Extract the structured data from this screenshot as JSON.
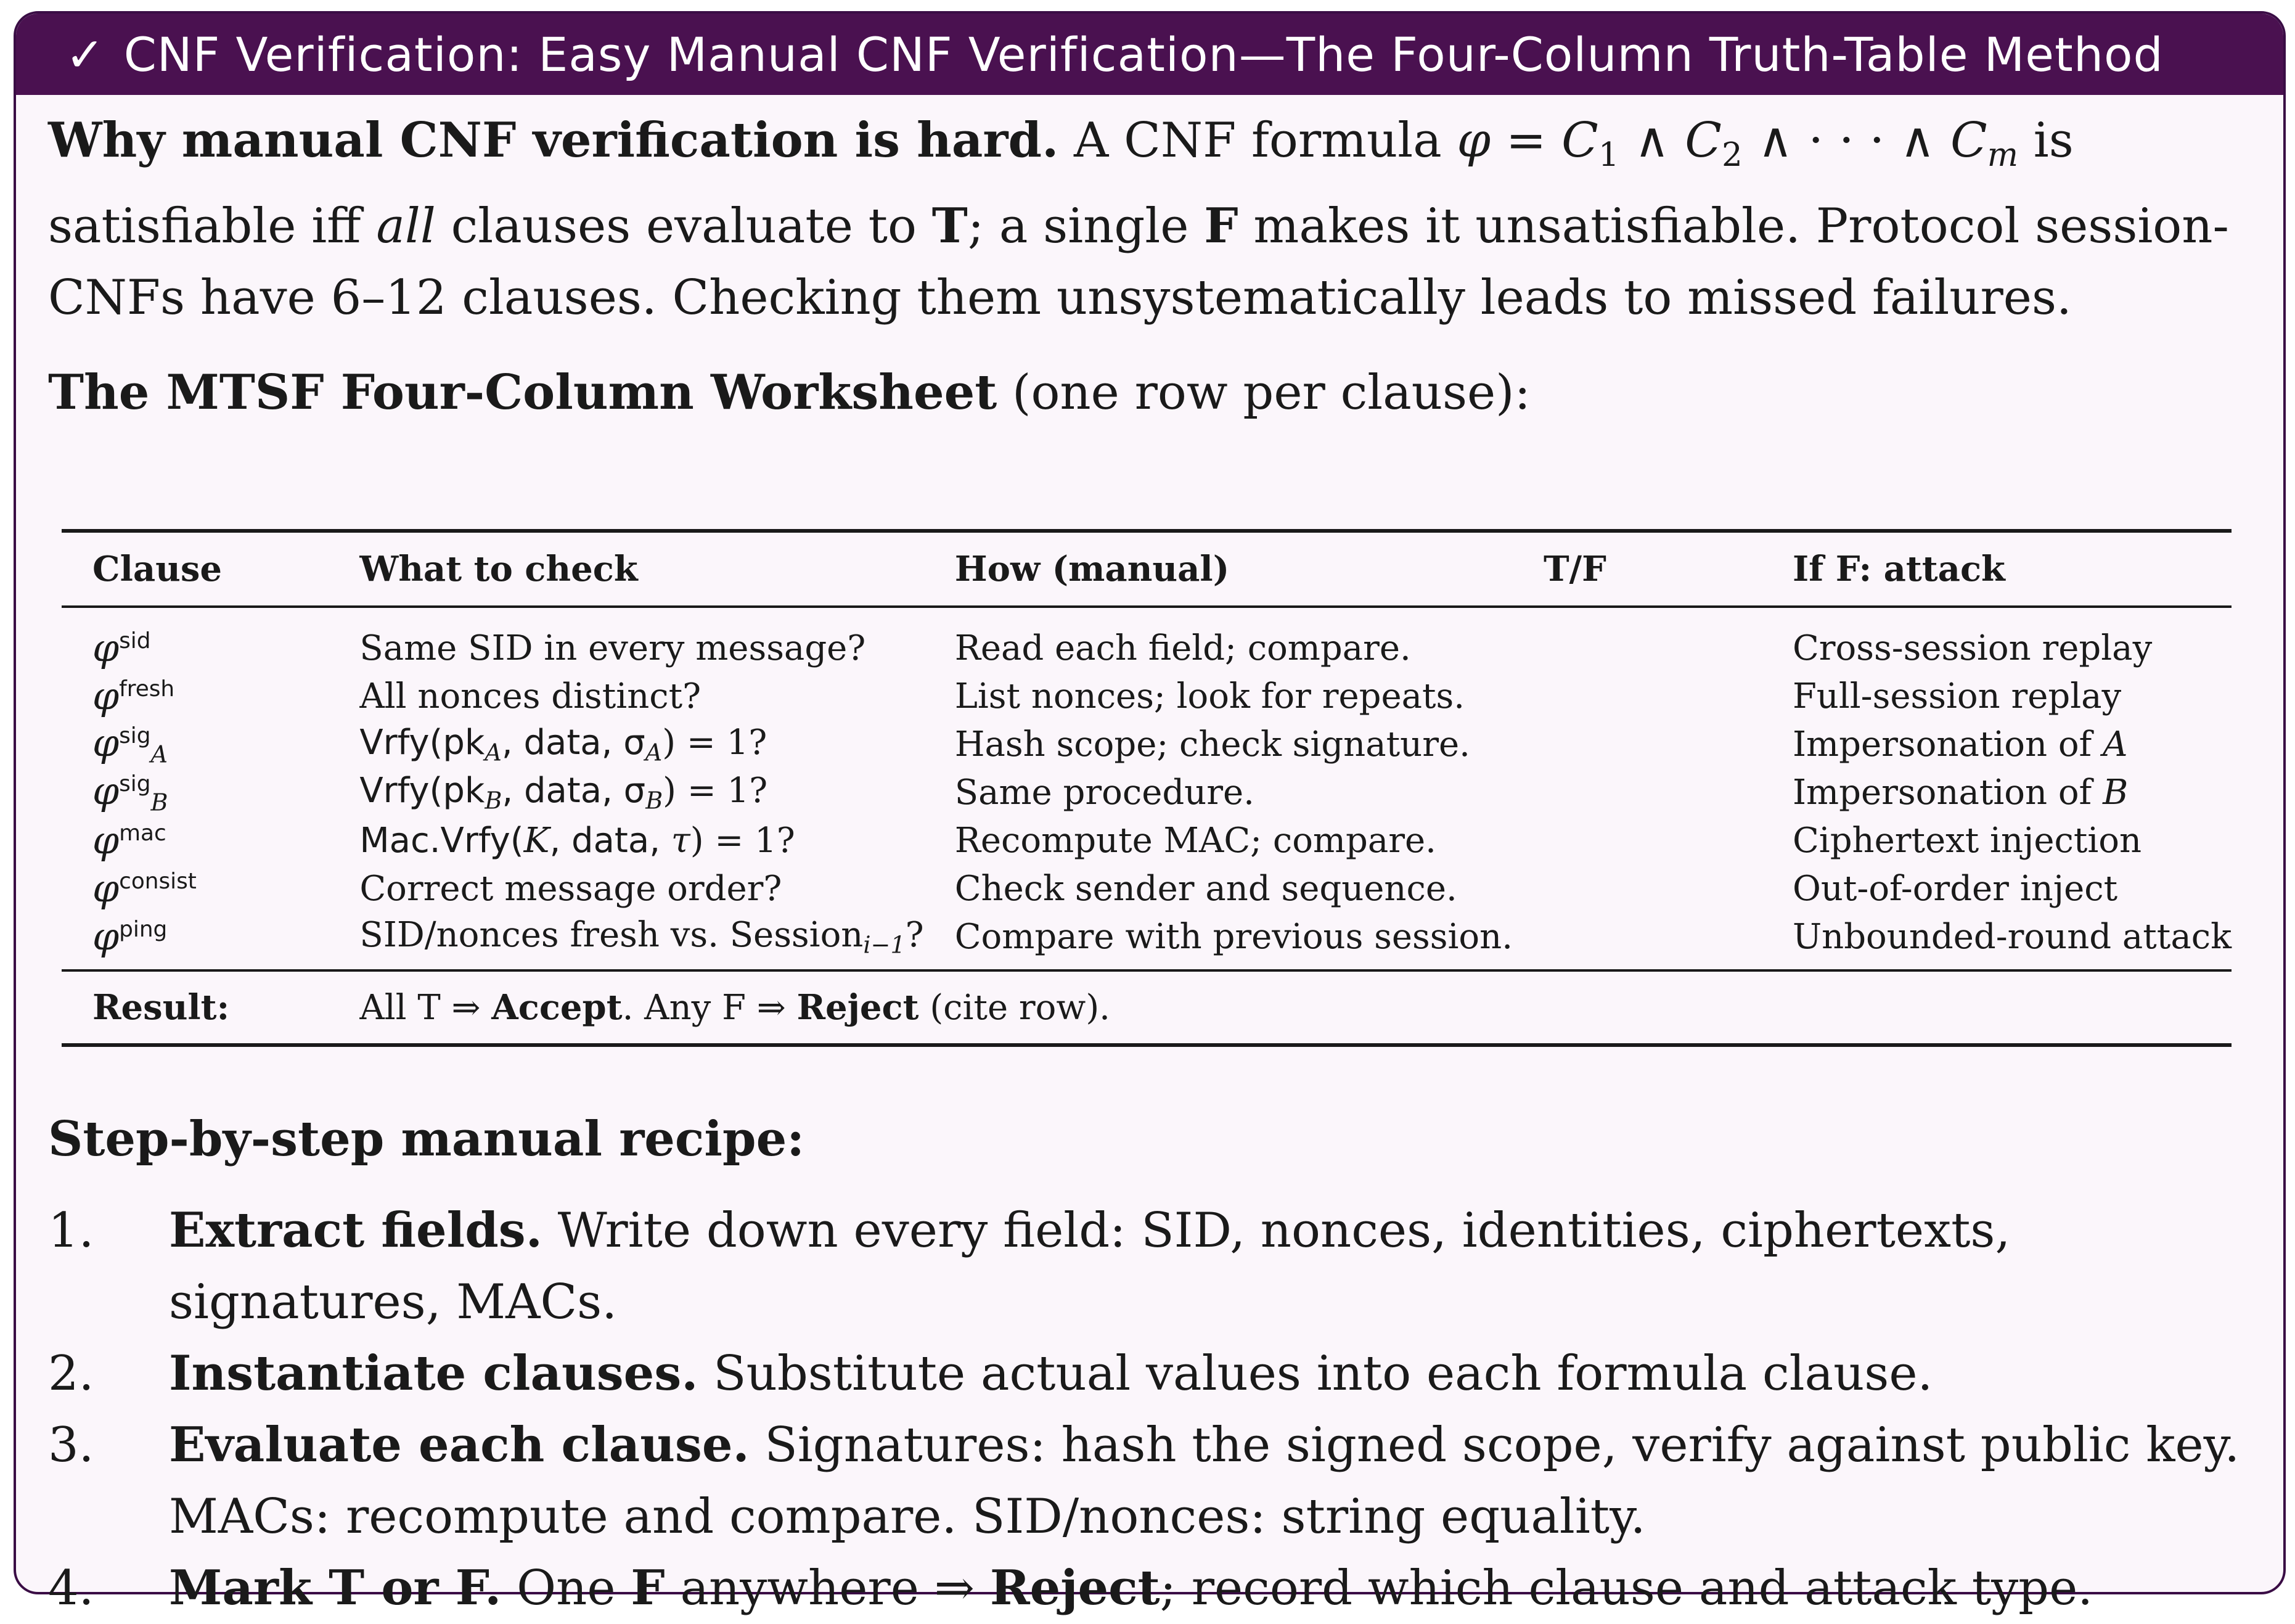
{
  "header": {
    "check_glyph": "✓",
    "title": "CNF Verification: Easy Manual CNF Verification—The Four-Column Truth-Table Method"
  },
  "intro": {
    "lead": "Why manual CNF verification is hard.",
    "text_a": "A CNF formula",
    "formula_phi": "φ",
    "formula_eq": " = ",
    "c": "C",
    "c1_sub": "1",
    "and": " ∧ ",
    "c2_sub": "2",
    "dots": " ∧ · · · ∧ ",
    "cm_sub": "m",
    "text_b": " is satisfiable iff ",
    "all": "all",
    "text_c": " clauses evaluate to ",
    "t": "T",
    "text_d": "; a single ",
    "f": "F",
    "text_e": " makes it unsatisfiable. Protocol session-CNFs have 6–12 clauses. Checking them unsystematically leads to missed failures."
  },
  "worksheet": {
    "heading": "The MTSF Four-Column Worksheet",
    "heading_note": " (one row per clause):"
  },
  "table": {
    "columns": [
      "Clause",
      "What to check",
      "How (manual)",
      "T/F",
      "If F: attack"
    ],
    "rows": [
      {
        "phi": "φ",
        "sup": "sid",
        "sub": "",
        "what": "Same SID in every message?",
        "how": "Read each field; compare.",
        "tf": "",
        "attack": "Cross-session replay"
      },
      {
        "phi": "φ",
        "sup": "fresh",
        "sub": "",
        "what": "All nonces distinct?",
        "how": "List nonces; look for repeats.",
        "tf": "",
        "attack": "Full-session replay"
      },
      {
        "phi": "φ",
        "sup": "sig",
        "sub": "A",
        "what_pre": "Vrfy(pk",
        "what_sub1": "A",
        "what_mid": ", data, σ",
        "what_sub2": "A",
        "what_post": ") = 1?",
        "how": "Hash scope; check signature.",
        "tf": "",
        "attack_pre": "Impersonation of ",
        "attack_var": "A"
      },
      {
        "phi": "φ",
        "sup": "sig",
        "sub": "B",
        "what_pre": "Vrfy(pk",
        "what_sub1": "B",
        "what_mid": ", data, σ",
        "what_sub2": "B",
        "what_post": ") = 1?",
        "how": "Same procedure.",
        "tf": "",
        "attack_pre": "Impersonation of ",
        "attack_var": "B"
      },
      {
        "phi": "φ",
        "sup": "mac",
        "sub": "",
        "what_pre": "Mac.Vrfy(",
        "what_k": "K",
        "what_mid": ", data, ",
        "what_tau": "τ",
        "what_post": ") = 1?",
        "how": "Recompute MAC; compare.",
        "tf": "",
        "attack": "Ciphertext injection"
      },
      {
        "phi": "φ",
        "sup": "consist",
        "sub": "",
        "what": "Correct message order?",
        "how": "Check sender and sequence.",
        "tf": "",
        "attack": "Out-of-order inject"
      },
      {
        "phi": "φ",
        "sup": "ping",
        "sub": "",
        "what_pre": "SID/nonces fresh vs. Session",
        "what_sub": "i−1",
        "what_post": "?",
        "how": "Compare with previous session.",
        "tf": "",
        "attack": "Unbounded-round attack"
      }
    ],
    "result": {
      "label": "Result:",
      "a": "All T ⇒ ",
      "accept": "Accept",
      "b": ". Any F ⇒ ",
      "reject": "Reject",
      "c": " (cite row)."
    }
  },
  "recipe": {
    "title": "Step-by-step manual recipe:",
    "steps": [
      {
        "num": "1.",
        "lead": "Extract fields.",
        "text": " Write down every field: SID, nonces, identities, ciphertexts, signatures, MACs."
      },
      {
        "num": "2.",
        "lead": "Instantiate clauses.",
        "text": " Substitute actual values into each formula clause."
      },
      {
        "num": "3.",
        "lead": "Evaluate each clause.",
        "text": " Signatures: hash the signed scope, verify against public key. MACs: recompute and compare. SID/nonces: string equality."
      },
      {
        "num": "4.",
        "lead": "Mark T or F.",
        "text_a": " One ",
        "f": "F",
        "text_b": " anywhere ⇒ ",
        "reject": "Reject",
        "text_c": "; record which clause and attack type."
      }
    ]
  }
}
